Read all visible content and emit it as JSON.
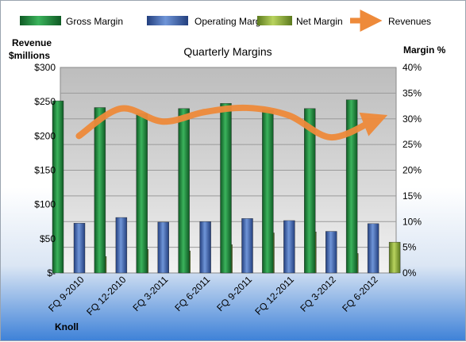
{
  "chart_data": {
    "type": "bar",
    "title": "Quarterly Margins",
    "company": "Knoll",
    "ylabel_left": [
      "Revenue",
      "$millions"
    ],
    "ylabel_right": "Margin %",
    "categories": [
      "FQ 9-2010",
      "FQ 12-2010",
      "FQ 3-2011",
      "FQ 6-2011",
      "FQ 9-2011",
      "FQ 12-2011",
      "FQ 3-2012",
      "FQ 6-2012"
    ],
    "left_axis": {
      "ylim": [
        0,
        300
      ],
      "ticks": [
        "$-",
        "$50",
        "$100",
        "$150",
        "$200",
        "$250",
        "$300"
      ]
    },
    "right_axis": {
      "ylim": [
        0,
        40
      ],
      "ticks": [
        "0%",
        "5%",
        "10%",
        "15%",
        "20%",
        "25%",
        "30%",
        "35%",
        "40%"
      ]
    },
    "series": [
      {
        "name": "Gross Margin",
        "type": "bar",
        "axis": "right",
        "color": "#1e8a3c",
        "values": [
          33.5,
          32.2,
          31.0,
          32.0,
          33.0,
          31.7,
          32.0,
          33.7
        ]
      },
      {
        "name": "Operating Margin",
        "type": "bar",
        "axis": "right",
        "color": "#3a64b5",
        "values": [
          9.7,
          10.8,
          9.9,
          10.0,
          10.6,
          10.2,
          8.1,
          9.6
        ]
      },
      {
        "name": "Net Margin",
        "type": "bar",
        "axis": "right",
        "color": "#8aab3a",
        "values": [
          3.2,
          4.6,
          4.3,
          5.5,
          7.8,
          8.0,
          3.8,
          6.0
        ]
      },
      {
        "name": "Revenues",
        "type": "line",
        "axis": "left",
        "color": "#ee8a3a",
        "values": [
          200,
          240,
          221,
          235,
          241,
          230,
          198,
          222
        ]
      }
    ],
    "grid": true,
    "legend": "top"
  }
}
